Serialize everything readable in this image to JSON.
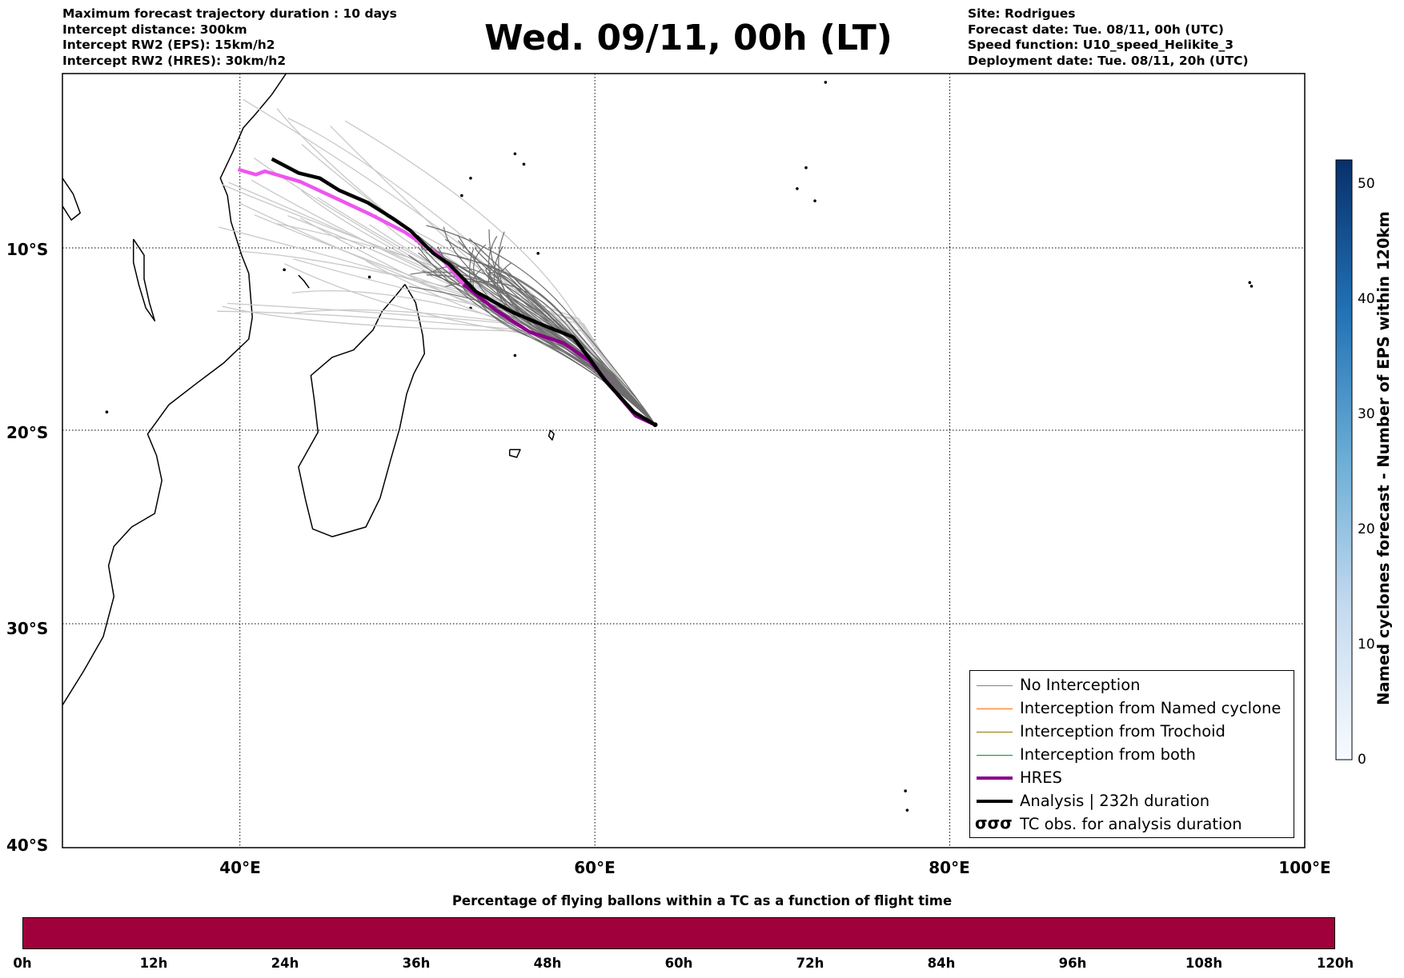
{
  "title": "Wed. 09/11, 00h (LT)",
  "header_left": [
    "Maximum forecast trajectory duration : 10 days",
    "Intercept distance: 300km",
    "Intercept RW2 (EPS):  15km/h2",
    "Intercept RW2 (HRES): 30km/h2"
  ],
  "header_right": [
    "Site: Rodrigues",
    "Forecast date: Tue. 08/11, 00h (UTC)",
    "Speed function: U10_speed_Helikite_3",
    "Deployment date: Tue. 08/11, 20h (UTC)"
  ],
  "map": {
    "lon_range": [
      30,
      100
    ],
    "lat_range": [
      -40,
      0
    ],
    "lon_ticks": [
      "40°E",
      "60°E",
      "80°E",
      "100°E"
    ],
    "lat_ticks": [
      "10°S",
      "20°S",
      "30°S",
      "40°S"
    ],
    "gridlines": true
  },
  "legend": {
    "placement": "lower-right",
    "items": [
      {
        "label": "No Interception",
        "color": "#808080"
      },
      {
        "label": "Interception from Named cyclone",
        "color": "#ff6a00"
      },
      {
        "label": "Interception from Trochoid",
        "color": "#8a7a00"
      },
      {
        "label": "Interception from both",
        "color": "#00a000"
      },
      {
        "label": "HRES",
        "color": "#8b008b"
      },
      {
        "label": "Analysis | 232h duration",
        "color": "#000000"
      },
      {
        "label": "TC obs. for analysis duration",
        "glyph": "σσσ"
      }
    ]
  },
  "colorbar_vertical": {
    "label": "Named cyclones forecast - Number of EPS within 120km",
    "ticks": [
      "0",
      "10",
      "20",
      "30",
      "40",
      "50"
    ],
    "range": [
      0,
      52
    ],
    "colormap": "Blues"
  },
  "colorbar_horizontal": {
    "title": "Percentage of flying ballons within a TC as a function of flight time",
    "ticks": [
      "0h",
      "12h",
      "24h",
      "36h",
      "48h",
      "60h",
      "72h",
      "84h",
      "96h",
      "108h",
      "120h"
    ],
    "fill_color": "#a0003c"
  },
  "chart_data": {
    "type": "trajectory map",
    "origin": {
      "lon": 63.4,
      "lat": -19.7
    },
    "analysis_track": [
      [
        63.4,
        -19.7
      ],
      [
        62.2,
        -19.0
      ],
      [
        60.6,
        -17.3
      ],
      [
        59.8,
        -16.2
      ],
      [
        58.8,
        -14.9
      ],
      [
        57.0,
        -14.2
      ],
      [
        55.3,
        -13.5
      ],
      [
        53.3,
        -12.4
      ],
      [
        51.8,
        -10.9
      ],
      [
        50.9,
        -10.3
      ],
      [
        49.6,
        -9.0
      ],
      [
        48.6,
        -8.3
      ],
      [
        47.2,
        -7.4
      ],
      [
        45.6,
        -6.7
      ],
      [
        44.5,
        -6.0
      ],
      [
        43.3,
        -5.7
      ],
      [
        41.8,
        -4.9
      ]
    ],
    "hres_track": [
      [
        63.4,
        -19.7
      ],
      [
        62.3,
        -19.2
      ],
      [
        60.9,
        -17.6
      ],
      [
        59.7,
        -16.2
      ],
      [
        58.2,
        -15.2
      ],
      [
        56.3,
        -14.6
      ],
      [
        54.4,
        -13.4
      ],
      [
        52.6,
        -12.0
      ],
      [
        51.2,
        -10.4
      ],
      [
        49.3,
        -9.1
      ],
      [
        47.4,
        -8.1
      ],
      [
        45.3,
        -7.1
      ],
      [
        43.4,
        -6.2
      ],
      [
        41.4,
        -5.6
      ],
      [
        40.9,
        -5.8
      ],
      [
        39.9,
        -5.5
      ]
    ],
    "ensemble_count": 52
  }
}
